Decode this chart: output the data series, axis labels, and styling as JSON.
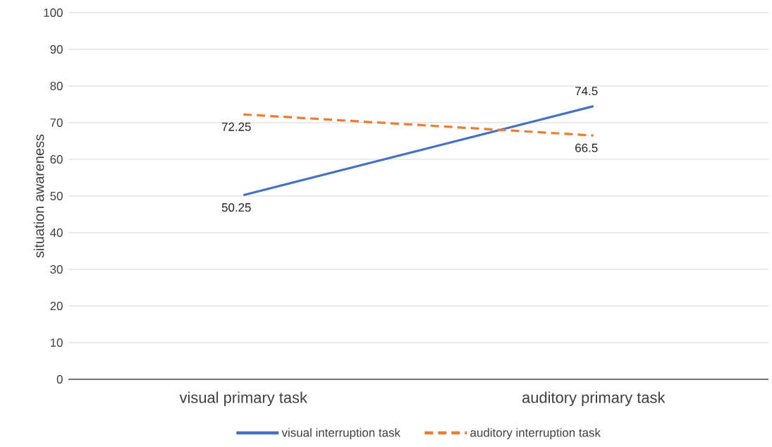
{
  "chart_data": {
    "type": "line",
    "ylabel": "situation awareness",
    "categories": [
      "visual primary task",
      "auditory primary task"
    ],
    "series": [
      {
        "name": "visual interruption task",
        "color": "#4472c4",
        "line_style": "solid",
        "values": [
          50.25,
          74.5
        ]
      },
      {
        "name": "auditory interruption task",
        "color": "#ed7d31",
        "line_style": "dashed",
        "values": [
          72.25,
          66.5
        ]
      }
    ],
    "ylim": [
      0,
      100
    ],
    "yticks": [
      0,
      10,
      20,
      30,
      40,
      50,
      60,
      70,
      80,
      90,
      100
    ],
    "grid": "y",
    "legend": "bottom",
    "data_labels": true,
    "marker": "none"
  }
}
